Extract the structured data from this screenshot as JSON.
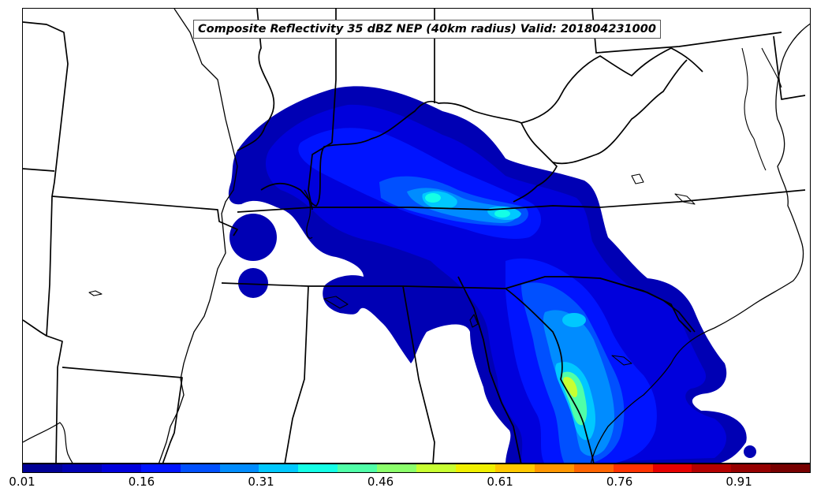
{
  "title": "Composite Reflectivity 35 dBZ NEP (40km radius) Valid: 201804231000",
  "colorbar": {
    "min": 0.01,
    "max": 1.0,
    "tick_labels": [
      "0.01",
      "0.16",
      "0.31",
      "0.46",
      "0.61",
      "0.76",
      "0.91"
    ],
    "tick_values": [
      0.01,
      0.16,
      0.31,
      0.46,
      0.61,
      0.76,
      0.91
    ],
    "colors": [
      "#000096",
      "#0000b4",
      "#0000dc",
      "#0014ff",
      "#0050ff",
      "#008cff",
      "#00c8ff",
      "#14ffe6",
      "#50ffa8",
      "#8cff6c",
      "#c8ff32",
      "#f0f000",
      "#ffc800",
      "#ff9600",
      "#ff6400",
      "#ff3200",
      "#e60000",
      "#b40000",
      "#960000",
      "#780000"
    ]
  },
  "map": {
    "background": "#ffffff",
    "border_color": "#000000"
  }
}
